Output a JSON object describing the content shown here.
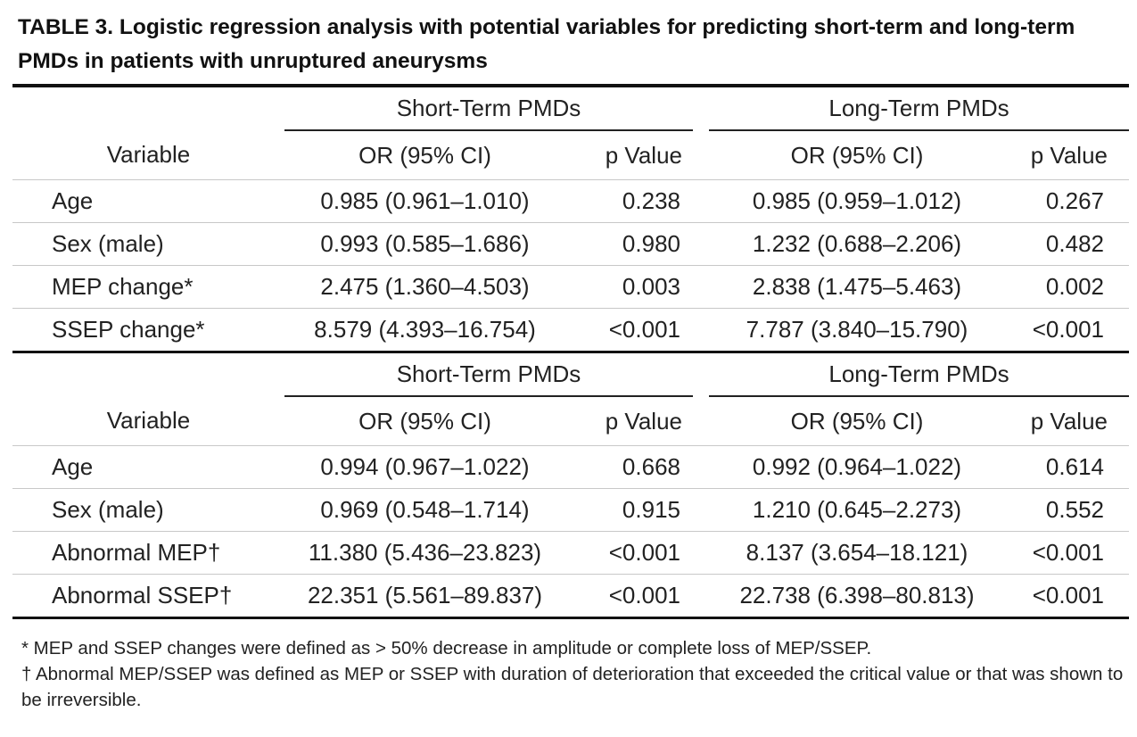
{
  "title": "TABLE 3. Logistic regression analysis with potential variables for predicting short-term and long-term PMDs in patients with unruptured aneurysms",
  "sections": [
    {
      "group_headers": [
        "Short-Term PMDs",
        "Long-Term PMDs"
      ],
      "column_headers": [
        "Variable",
        "OR (95% CI)",
        "p Value",
        "OR (95% CI)",
        "p Value"
      ],
      "rows": [
        {
          "variable": "Age",
          "short_or": "0.985 (0.961–1.010)",
          "short_p": "0.238",
          "long_or": "0.985 (0.959–1.012)",
          "long_p": "0.267"
        },
        {
          "variable": "Sex (male)",
          "short_or": "0.993 (0.585–1.686)",
          "short_p": "0.980",
          "long_or": "1.232 (0.688–2.206)",
          "long_p": "0.482"
        },
        {
          "variable": "MEP change*",
          "short_or": "2.475 (1.360–4.503)",
          "short_p": "0.003",
          "long_or": "2.838 (1.475–5.463)",
          "long_p": "0.002"
        },
        {
          "variable": "SSEP change*",
          "short_or": "8.579 (4.393–16.754)",
          "short_p": "<0.001",
          "long_or": "7.787 (3.840–15.790)",
          "long_p": "<0.001"
        }
      ]
    },
    {
      "group_headers": [
        "Short-Term PMDs",
        "Long-Term PMDs"
      ],
      "column_headers": [
        "Variable",
        "OR (95% CI)",
        "p Value",
        "OR (95% CI)",
        "p Value"
      ],
      "rows": [
        {
          "variable": "Age",
          "short_or": "0.994 (0.967–1.022)",
          "short_p": "0.668",
          "long_or": "0.992 (0.964–1.022)",
          "long_p": "0.614"
        },
        {
          "variable": "Sex (male)",
          "short_or": "0.969 (0.548–1.714)",
          "short_p": "0.915",
          "long_or": "1.210 (0.645–2.273)",
          "long_p": "0.552"
        },
        {
          "variable": "Abnormal MEP†",
          "short_or": "11.380 (5.436–23.823)",
          "short_p": "<0.001",
          "long_or": "8.137 (3.654–18.121)",
          "long_p": "<0.001"
        },
        {
          "variable": "Abnormal SSEP†",
          "short_or": "22.351 (5.561–89.837)",
          "short_p": "<0.001",
          "long_or": "22.738 (6.398–80.813)",
          "long_p": "<0.001"
        }
      ]
    }
  ],
  "footnotes": [
    "* MEP and SSEP changes were defined as > 50% decrease in amplitude or complete loss of MEP/SSEP.",
    "† Abnormal MEP/SSEP was defined as MEP or SSEP with duration of deterioration that exceeded the critical value or that was shown to be irreversible."
  ]
}
